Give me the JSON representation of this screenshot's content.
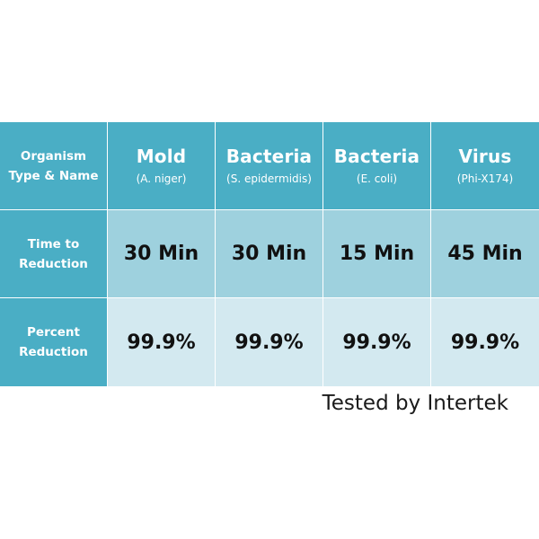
{
  "table": {
    "header": {
      "row_label_line1": "Organism",
      "row_label_line2": "Type & Name",
      "columns": [
        {
          "type": "Mold",
          "name": "(A. niger)"
        },
        {
          "type": "Bacteria",
          "name": "(S. epidermidis)"
        },
        {
          "type": "Bacteria",
          "name": "(E. coli)"
        },
        {
          "type": "Virus",
          "name": "(Phi-X174)"
        }
      ]
    },
    "rows": [
      {
        "label_line1": "Time to",
        "label_line2": "Reduction",
        "values": [
          "30 Min",
          "30 Min",
          "15 Min",
          "45 Min"
        ]
      },
      {
        "label_line1": "Percent",
        "label_line2": "Reduction",
        "values": [
          "99.9%",
          "99.9%",
          "99.9%",
          "99.9%"
        ]
      }
    ]
  },
  "footer": {
    "tested_by": "Tested by Intertek"
  },
  "colors": {
    "header_teal": "#4aaec5",
    "time_row": "#9ed1de",
    "percent_row": "#d3e9f0"
  }
}
